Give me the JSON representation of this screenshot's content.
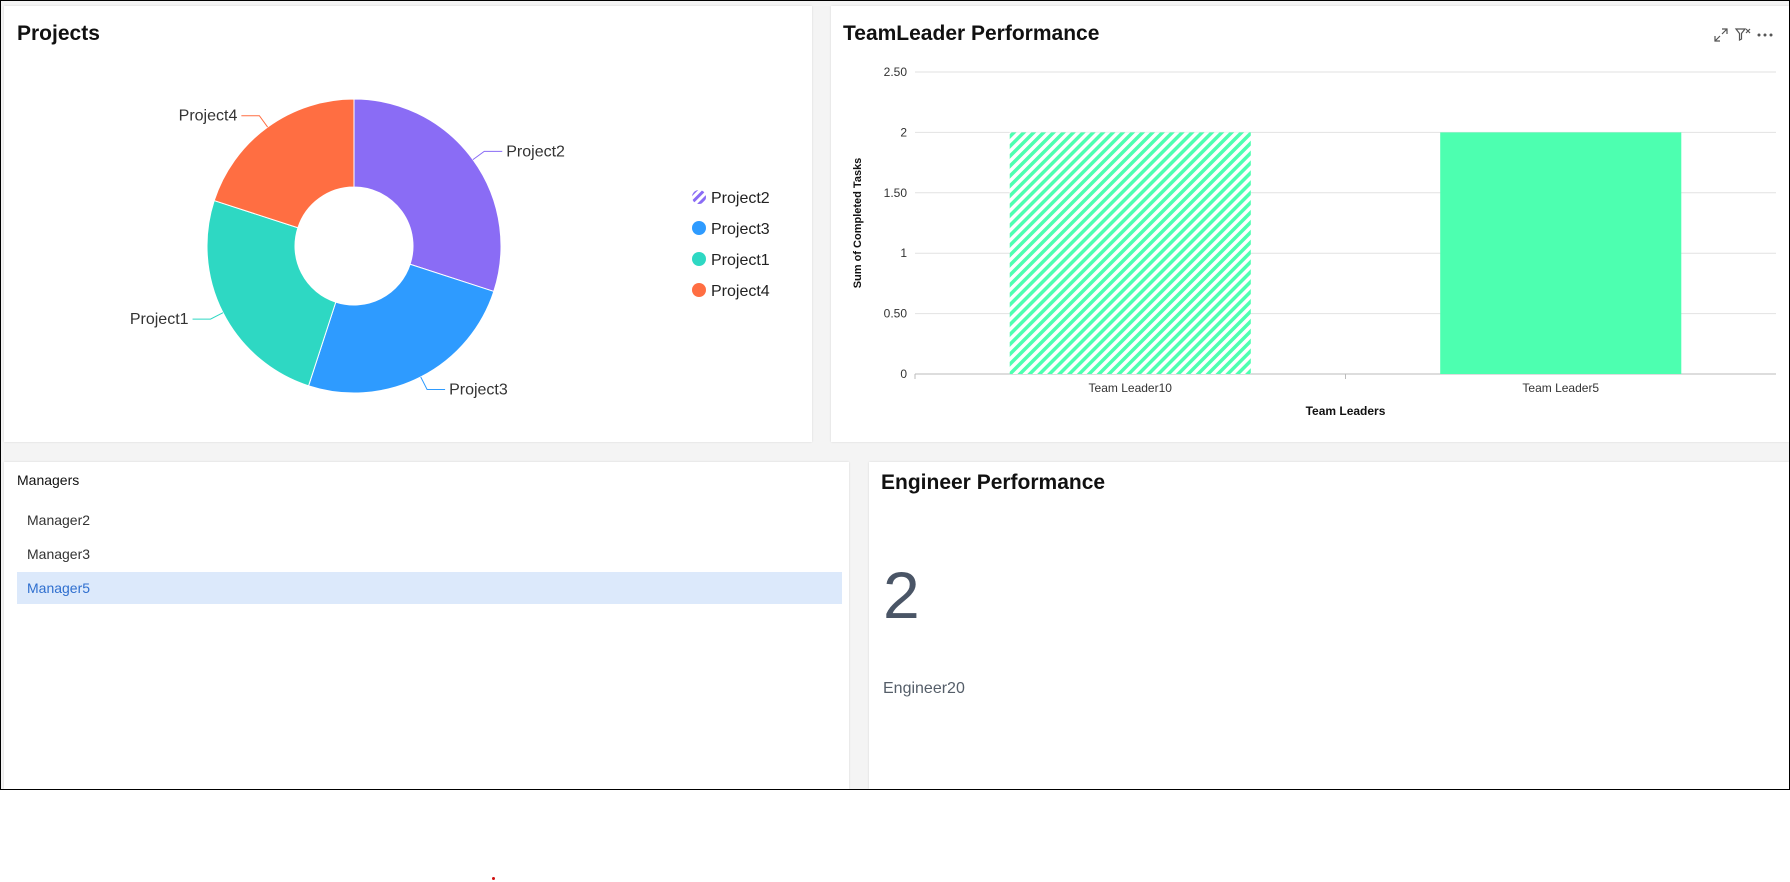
{
  "projects": {
    "title": "Projects",
    "chart_data": {
      "type": "pie",
      "variant": "donut",
      "slices": [
        {
          "label": "Project2",
          "value": 30,
          "color": "#8a6cf5",
          "pattern": "hatch"
        },
        {
          "label": "Project3",
          "value": 25,
          "color": "#2e9bff"
        },
        {
          "label": "Project1",
          "value": 25,
          "color": "#2ed8c3"
        },
        {
          "label": "Project4",
          "value": 20,
          "color": "#ff6e42"
        }
      ],
      "legend": [
        "Project2",
        "Project3",
        "Project1",
        "Project4"
      ],
      "legend_placement": "right"
    }
  },
  "team_leader": {
    "title": "TeamLeader Performance",
    "toolbar": {
      "expand_icon": "expand-icon",
      "filter_icon": "filter-clear-icon",
      "more_icon": "more-options-icon"
    },
    "chart_data": {
      "type": "bar",
      "categories": [
        "Team Leader10",
        "Team Leader5"
      ],
      "values": [
        2,
        2
      ],
      "xlabel": "Team Leaders",
      "ylabel": "Sum of Completed Tasks",
      "ylim": [
        0,
        2.5
      ],
      "yticks": [
        "0",
        "0.50",
        "1",
        "1.50",
        "2",
        "2.50"
      ],
      "grid": true,
      "color": "#4dffb0",
      "hatched_category": "Team Leader10"
    }
  },
  "managers": {
    "title": "Managers",
    "items": [
      "Manager2",
      "Manager3",
      "Manager5"
    ],
    "selected": "Manager5"
  },
  "engineer": {
    "title": "Engineer Performance",
    "value": "2",
    "label": "Engineer20"
  }
}
